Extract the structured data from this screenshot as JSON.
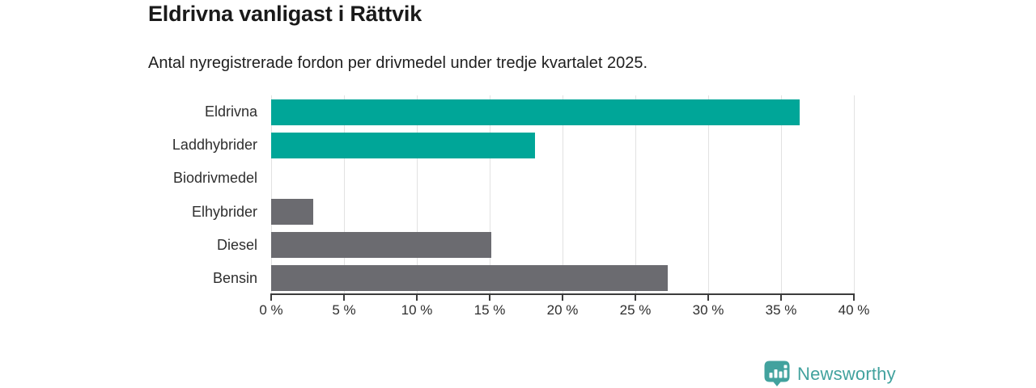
{
  "title": "Eldrivna vanligast i Rättvik",
  "subtitle": "Antal nyregistrerade fordon per drivmedel under tredje kvartalet 2025.",
  "chart_data": {
    "type": "bar",
    "orientation": "horizontal",
    "title": "Eldrivna vanligast i Rättvik",
    "subtitle": "Antal nyregistrerade fordon per drivmedel under tredje kvartalet 2025.",
    "categories": [
      "Eldrivna",
      "Laddhybrider",
      "Biodrivmedel",
      "Elhybrider",
      "Diesel",
      "Bensin"
    ],
    "values": [
      36.3,
      18.1,
      0,
      2.9,
      15.1,
      27.2
    ],
    "unit": "%",
    "xlim": [
      0,
      40
    ],
    "xticks": [
      0,
      5,
      10,
      15,
      20,
      25,
      30,
      35,
      40
    ],
    "xtick_labels": [
      "0 %",
      "5 %",
      "10 %",
      "15 %",
      "20 %",
      "25 %",
      "30 %",
      "35 %",
      "40 %"
    ],
    "grid": true,
    "legend": false,
    "bar_colors": [
      "#00a698",
      "#00a698",
      "#6b6b70",
      "#6b6b70",
      "#6b6b70",
      "#6b6b70"
    ]
  },
  "colors": {
    "accent_teal": "#00a698",
    "bar_gray": "#6b6b70",
    "axis": "#3c3c3c",
    "gridline": "#e2e2e2",
    "title_text": "#1a1a1a",
    "logo_teal": "#42a29e"
  },
  "logo": {
    "text": "Newsworthy",
    "icon": "bar-chart-pin-icon",
    "color": "#42a29e"
  }
}
